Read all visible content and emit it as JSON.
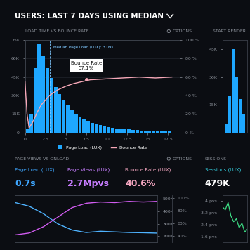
{
  "header": "USERS: LAST 7 DAYS USING MEDIAN",
  "chart_data": [
    {
      "type": "bar",
      "title": "LOAD TIME VS BOUNCE RATE",
      "options": "OPTIONS",
      "grid": true,
      "legend": "bottom",
      "xlim": [
        0,
        19
      ],
      "xticks": [
        0,
        2.5,
        5,
        7.5,
        10,
        12.5,
        15,
        17.5
      ],
      "ylim": [
        0,
        75000
      ],
      "yticks": [
        0,
        {
          "value": 15000,
          "label": "15K"
        },
        {
          "value": 30000,
          "label": "30K"
        },
        {
          "value": 45000,
          "label": "45K"
        },
        {
          "value": 60000,
          "label": "60K"
        },
        {
          "value": 75000,
          "label": "75K"
        }
      ],
      "y2lim": [
        0,
        100
      ],
      "y2ticks": [
        {
          "value": 0,
          "label": "0 %"
        },
        {
          "value": 20,
          "label": "20 %"
        },
        {
          "value": 40,
          "label": "40 %"
        },
        {
          "value": 60,
          "label": "60 %"
        },
        {
          "value": 80,
          "label": "80 %"
        },
        {
          "value": 100,
          "label": "100 %"
        }
      ],
      "annotation": {
        "text": "Median Page Load (LUX): 3.09s",
        "x": 3.09
      },
      "tooltip": {
        "title": "Bounce Rate",
        "label": "57.1%",
        "x": 7.5,
        "value": 57.1
      },
      "series": [
        {
          "name": "Page Load (LUX)",
          "type": "bar",
          "color": "#1ea7ff",
          "x": [
            0.25,
            0.75,
            1.25,
            1.75,
            2.25,
            2.75,
            3.25,
            3.75,
            4.25,
            4.75,
            5.25,
            5.75,
            6.25,
            6.75,
            7.25,
            7.75,
            8.25,
            8.75,
            9.25,
            9.75,
            10.25,
            10.75,
            11.25,
            11.75,
            12.25,
            12.75,
            13.25,
            13.75,
            14.25,
            14.75,
            15.25,
            15.75,
            16.25,
            16.75,
            17.25,
            17.75
          ],
          "values": [
            3000,
            15000,
            52000,
            72000,
            62000,
            52000,
            44000,
            37000,
            31000,
            26000,
            22000,
            18000,
            15000,
            13000,
            11000,
            9500,
            8000,
            7000,
            6000,
            5200,
            4500,
            4000,
            3500,
            3000,
            2700,
            2400,
            2100,
            1900,
            1700,
            1500,
            1300,
            1200,
            1100,
            1000,
            900,
            800
          ]
        },
        {
          "name": "Bounce Rate",
          "type": "line",
          "color": "#f7a8b8",
          "axis": "y2",
          "x": [
            0,
            0.25,
            0.5,
            1,
            1.5,
            2,
            3,
            4,
            5,
            6,
            7,
            8,
            10,
            12,
            14,
            16,
            18
          ],
          "values": [
            55,
            20,
            5,
            12,
            22,
            30,
            40,
            46,
            50,
            53,
            55,
            57,
            58,
            59,
            60,
            59,
            60
          ]
        }
      ]
    },
    {
      "type": "bar",
      "title": "START RENDER",
      "tick_labels": "y",
      "color": "#1ea7ff",
      "x": [
        0.5,
        1,
        1.5,
        2,
        2.5,
        3
      ],
      "values": [
        5000,
        20000,
        45000,
        30000,
        18000,
        10000
      ],
      "xlim": [
        0,
        3.5
      ],
      "ylim": [
        0,
        50000
      ],
      "yticks": [
        {
          "value": 15000,
          "label": "15K"
        },
        {
          "value": 30000,
          "label": "30K"
        },
        {
          "value": 45000,
          "label": "45K"
        }
      ]
    },
    {
      "type": "line",
      "title": "PAGE VIEWS VS ONLOAD",
      "options": "OPTIONS",
      "tick_labels": "y",
      "kpis": [
        {
          "label": "Page Load (LUX)",
          "value": "0.7s",
          "color": "#3ea6ff"
        },
        {
          "label": "Page Views (LUX)",
          "value": "2.7Mpvs",
          "color": "#c77dff"
        },
        {
          "label": "Bounce Rate (LUX)",
          "value": "40.6%",
          "color": "#f4a6c0"
        }
      ],
      "x": [
        0,
        1,
        2,
        3,
        4,
        5,
        6,
        7,
        8,
        9,
        10
      ],
      "xlim": [
        0,
        10
      ],
      "ylim": [
        150000,
        530000
      ],
      "yticks": [
        {
          "value": 200000,
          "label": "200K"
        },
        {
          "value": 300000,
          "label": "300K"
        },
        {
          "value": 400000,
          "label": "400K"
        },
        {
          "value": 500000,
          "label": "500K"
        }
      ],
      "y2lim": [
        30,
        105
      ],
      "y2ticks": [
        {
          "value": 40,
          "label": "40%"
        },
        {
          "value": 60,
          "label": "60%"
        },
        {
          "value": 80,
          "label": "80%"
        },
        {
          "value": 100,
          "label": "100%"
        }
      ],
      "series": [
        {
          "color": "#4fb3ff",
          "values": [
            470000,
            440000,
            380000,
            300000,
            250000,
            230000,
            240000,
            235000,
            230000,
            228000,
            225000
          ]
        },
        {
          "color": "#d15cf0",
          "axis": "y2",
          "values": [
            42,
            45,
            55,
            70,
            85,
            92,
            94,
            93,
            95,
            94,
            95
          ]
        }
      ]
    },
    {
      "type": "line",
      "title": "SESSIONS",
      "tick_labels": "y",
      "kpis": [
        {
          "label": "Sessions (LUX)",
          "value": "479K",
          "color": "#35d0e0"
        }
      ],
      "x": [
        0,
        1,
        2,
        3,
        4,
        5,
        6,
        7,
        8,
        9
      ],
      "xlim": [
        0,
        9
      ],
      "ylim": [
        1.2,
        4.4
      ],
      "yticks": [
        {
          "value": 1.6,
          "label": "1.6 pvs"
        },
        {
          "value": 2.4,
          "label": "2.4 pvs"
        },
        {
          "value": 3.2,
          "label": "3.2 pvs"
        },
        {
          "value": 4,
          "label": "4 pvs"
        }
      ],
      "series": [
        {
          "color": "#3ddc84",
          "values": [
            3.6,
            3.4,
            3.9,
            3.0,
            2.6,
            2.8,
            2.2,
            2.5,
            1.9,
            2.1
          ]
        }
      ]
    }
  ]
}
